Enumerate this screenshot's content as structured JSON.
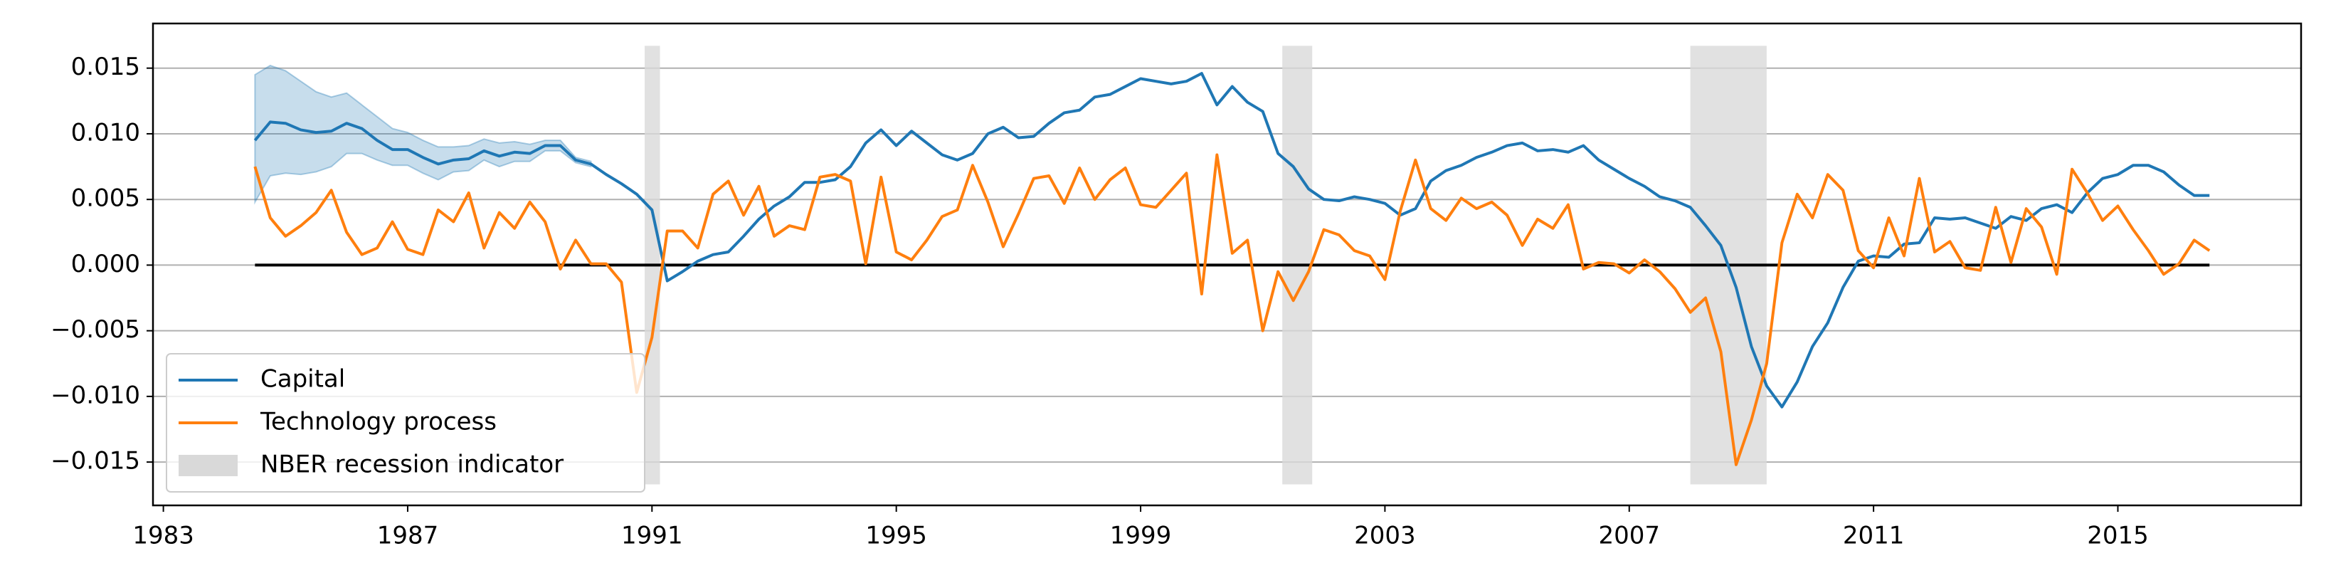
{
  "chart_data": {
    "type": "line",
    "xlim": [
      1982.83,
      2018.0
    ],
    "xticks": [
      1983,
      1987,
      1991,
      1995,
      1999,
      2003,
      2007,
      2011,
      2015
    ],
    "ylim": [
      -0.0183,
      0.0184
    ],
    "yticks": [
      {
        "value": -0.015,
        "label": "−0.015"
      },
      {
        "value": -0.01,
        "label": "−0.010"
      },
      {
        "value": -0.005,
        "label": "−0.005"
      },
      {
        "value": 0,
        "label": "0.000"
      },
      {
        "value": 0.005,
        "label": "0.005"
      },
      {
        "value": 0.01,
        "label": "0.010"
      },
      {
        "value": 0.015,
        "label": "0.015"
      }
    ],
    "grid": true,
    "hline": 0,
    "legend": "lower left",
    "recessions": {
      "name": "NBER recession indicator",
      "color": "#d9d9d9",
      "ylim": [
        -0.0167,
        0.0167
      ],
      "periods": [
        {
          "start": 1990.88,
          "end": 1991.13
        },
        {
          "start": 2001.32,
          "end": 2001.81
        },
        {
          "start": 2008.0,
          "end": 2009.25
        }
      ]
    },
    "x": [
      1984.5,
      1984.75,
      1985,
      1985.25,
      1985.5,
      1985.75,
      1986,
      1986.25,
      1986.5,
      1986.75,
      1987,
      1987.25,
      1987.5,
      1987.75,
      1988,
      1988.25,
      1988.5,
      1988.75,
      1989,
      1989.25,
      1989.5,
      1989.75,
      1990,
      1990.25,
      1990.5,
      1990.75,
      1991,
      1991.25,
      1991.5,
      1991.75,
      1992,
      1992.25,
      1992.5,
      1992.75,
      1993,
      1993.25,
      1993.5,
      1993.75,
      1994,
      1994.25,
      1994.5,
      1994.75,
      1995,
      1995.25,
      1995.5,
      1995.75,
      1996,
      1996.25,
      1996.5,
      1996.75,
      1997,
      1997.25,
      1997.5,
      1997.75,
      1998,
      1998.25,
      1998.5,
      1998.75,
      1999,
      1999.25,
      1999.5,
      1999.75,
      2000,
      2000.25,
      2000.5,
      2000.75,
      2001,
      2001.25,
      2001.5,
      2001.75,
      2002,
      2002.25,
      2002.5,
      2002.75,
      2003,
      2003.25,
      2003.5,
      2003.75,
      2004,
      2004.25,
      2004.5,
      2004.75,
      2005,
      2005.25,
      2005.5,
      2005.75,
      2006,
      2006.25,
      2006.5,
      2006.75,
      2007,
      2007.25,
      2007.5,
      2007.75,
      2008,
      2008.25,
      2008.5,
      2008.75,
      2009,
      2009.25,
      2009.5,
      2009.75,
      2010,
      2010.25,
      2010.5,
      2010.75,
      2011,
      2011.25,
      2011.5,
      2011.75,
      2012,
      2012.25,
      2012.5,
      2012.75,
      2013,
      2013.25,
      2013.5,
      2013.75,
      2014,
      2014.25,
      2014.5,
      2014.75,
      2015,
      2015.25,
      2015.5,
      2015.75,
      2016,
      2016.25,
      2016.5
    ],
    "series": [
      {
        "name": "Capital",
        "color": "#1f77b4",
        "values": [
          0.0095,
          0.0109,
          0.0108,
          0.0103,
          0.0101,
          0.0102,
          0.0108,
          0.0104,
          0.0095,
          0.0088,
          0.0088,
          0.0082,
          0.0077,
          0.008,
          0.0081,
          0.0087,
          0.0083,
          0.0086,
          0.0085,
          0.0091,
          0.0091,
          0.008,
          0.0077,
          0.0069,
          0.0062,
          0.0054,
          0.0042,
          -0.0012,
          -0.0005,
          0.0003,
          0.0008,
          0.001,
          0.0022,
          0.0035,
          0.0045,
          0.0052,
          0.0063,
          0.0063,
          0.0065,
          0.0075,
          0.0093,
          0.0103,
          0.0091,
          0.0102,
          0.0093,
          0.0084,
          0.008,
          0.0085,
          0.01,
          0.0105,
          0.0097,
          0.0098,
          0.0108,
          0.0116,
          0.0118,
          0.0128,
          0.013,
          0.0136,
          0.0142,
          0.014,
          0.0138,
          0.014,
          0.0146,
          0.0122,
          0.0136,
          0.0124,
          0.0117,
          0.0085,
          0.0075,
          0.0058,
          0.005,
          0.0049,
          0.0052,
          0.005,
          0.0047,
          0.0038,
          0.0043,
          0.0064,
          0.0072,
          0.0076,
          0.0082,
          0.0086,
          0.0091,
          0.0093,
          0.0087,
          0.0088,
          0.0086,
          0.0091,
          0.008,
          0.0073,
          0.0066,
          0.006,
          0.0052,
          0.0049,
          0.0044,
          0.003,
          0.0015,
          -0.0017,
          -0.0062,
          -0.0092,
          -0.0108,
          -0.0089,
          -0.0062,
          -0.0044,
          -0.0017,
          0.0003,
          0.0007,
          0.0006,
          0.0016,
          0.0017,
          0.0036,
          0.0035,
          0.0036,
          0.0032,
          0.0028,
          0.0037,
          0.0034,
          0.0043,
          0.0046,
          0.004,
          0.0055,
          0.0066,
          0.0069,
          0.0076,
          0.0076,
          0.0071,
          0.0061,
          0.0053,
          0.0053
        ],
        "band": {
          "color": "#1f77b4",
          "x": [
            1984.5,
            1984.75,
            1985,
            1985.25,
            1985.5,
            1985.75,
            1986,
            1986.25,
            1986.5,
            1986.75,
            1987,
            1987.25,
            1987.5,
            1987.75,
            1988,
            1988.25,
            1988.5,
            1988.75,
            1989,
            1989.25,
            1989.5,
            1989.75,
            1990
          ],
          "upper": [
            0.0145,
            0.0152,
            0.0148,
            0.014,
            0.0132,
            0.0128,
            0.0131,
            0.0122,
            0.0113,
            0.0104,
            0.0101,
            0.0095,
            0.009,
            0.009,
            0.0091,
            0.0096,
            0.0093,
            0.0094,
            0.0092,
            0.0095,
            0.0095,
            0.0082,
            0.0079
          ],
          "lower": [
            0.0048,
            0.0068,
            0.007,
            0.0069,
            0.0071,
            0.0075,
            0.0085,
            0.0085,
            0.008,
            0.0076,
            0.0076,
            0.007,
            0.0065,
            0.0071,
            0.0072,
            0.008,
            0.0075,
            0.0079,
            0.0079,
            0.0087,
            0.0087,
            0.0078,
            0.0075
          ]
        }
      },
      {
        "name": "Technology process",
        "color": "#ff7f0e",
        "values": [
          0.0075,
          0.0036,
          0.0022,
          0.003,
          0.004,
          0.0057,
          0.0025,
          0.0008,
          0.0013,
          0.0033,
          0.0012,
          0.0008,
          0.0042,
          0.0033,
          0.0055,
          0.0013,
          0.004,
          0.0028,
          0.0048,
          0.0033,
          -0.0003,
          0.0019,
          0.0001,
          0.0001,
          -0.0013,
          -0.0097,
          -0.0055,
          0.0026,
          0.0026,
          0.0013,
          0.0054,
          0.0064,
          0.0038,
          0.006,
          0.0022,
          0.003,
          0.0027,
          0.0067,
          0.0069,
          0.0064,
          0.0001,
          0.0067,
          0.001,
          0.0004,
          0.0019,
          0.0037,
          0.0042,
          0.0076,
          0.0048,
          0.0014,
          0.0039,
          0.0066,
          0.0068,
          0.0047,
          0.0074,
          0.005,
          0.0065,
          0.0074,
          0.0046,
          0.0044,
          0.0057,
          0.007,
          -0.0022,
          0.0084,
          0.0009,
          0.0019,
          -0.005,
          -0.0005,
          -0.0027,
          -0.0005,
          0.0027,
          0.0023,
          0.0011,
          0.0007,
          -0.0011,
          0.0041,
          0.008,
          0.0043,
          0.0034,
          0.0051,
          0.0043,
          0.0048,
          0.0038,
          0.0015,
          0.0035,
          0.0028,
          0.0046,
          -0.0003,
          0.0002,
          0.0001,
          -0.0006,
          0.0004,
          -0.0005,
          -0.0018,
          -0.0036,
          -0.0025,
          -0.0066,
          -0.0152,
          -0.0118,
          -0.0075,
          0.0017,
          0.0054,
          0.0036,
          0.0069,
          0.0057,
          0.0011,
          -0.0002,
          0.0036,
          0.0007,
          0.0066,
          0.001,
          0.0018,
          -0.0002,
          -0.0004,
          0.0044,
          0.0002,
          0.0043,
          0.0029,
          -0.0007,
          0.0073,
          0.0055,
          0.0034,
          0.0045,
          0.0027,
          0.0011,
          -0.0007,
          0.0001,
          0.0019,
          0.0011
        ]
      }
    ]
  }
}
